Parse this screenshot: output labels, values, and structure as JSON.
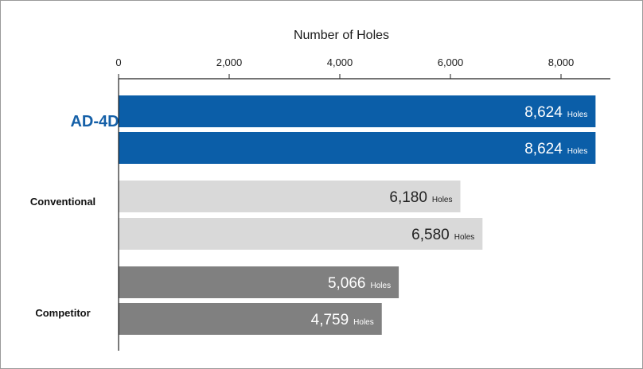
{
  "chart_data": {
    "type": "bar",
    "orientation": "horizontal",
    "xlabel": "Number of Holes",
    "xlim": [
      0,
      8900
    ],
    "xticks": [
      0,
      2000,
      4000,
      6000,
      8000
    ],
    "xtick_labels": [
      "0",
      "2,000",
      "4,000",
      "6,000",
      "8,000"
    ],
    "grid": false,
    "unit": "Holes",
    "categories": [
      {
        "name": "AD-4D",
        "color": "#0b5ea8",
        "bars": [
          {
            "value": 8624,
            "label": "8,624"
          },
          {
            "value": 8624,
            "label": "8,624"
          }
        ]
      },
      {
        "name": "Conventional",
        "color": "#d9d9d9",
        "bars": [
          {
            "value": 6180,
            "label": "6,180"
          },
          {
            "value": 6580,
            "label": "6,580"
          }
        ]
      },
      {
        "name": "Competitor",
        "color": "#808080",
        "bars": [
          {
            "value": 5066,
            "label": "5,066"
          },
          {
            "value": 4759,
            "label": "4,759"
          }
        ]
      }
    ]
  }
}
